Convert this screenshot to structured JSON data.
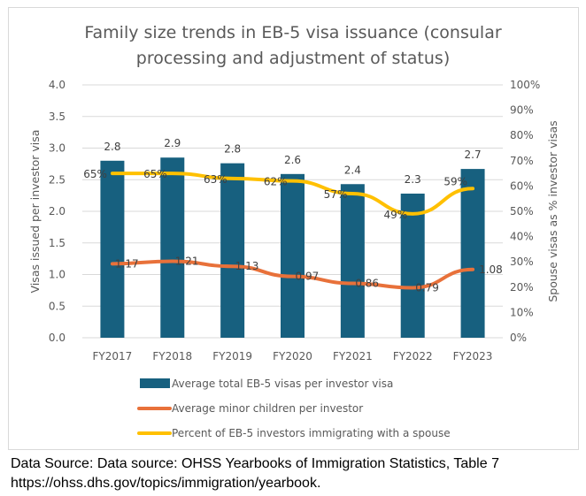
{
  "chart_data": {
    "type": "bar",
    "title_lines": [
      "Family size trends in EB-5 visa issuance (consular",
      "processing and adjustment of status)"
    ],
    "categories": [
      "FY2017",
      "FY2018",
      "FY2019",
      "FY2020",
      "FY2021",
      "FY2022",
      "FY2023"
    ],
    "ylabel": "Visas issued per investor visa",
    "y2label": "Spouse visas as % investor visas",
    "ylim": [
      0,
      4
    ],
    "y2lim": [
      0,
      100
    ],
    "yticks": [
      "0.0",
      "0.5",
      "1.0",
      "1.5",
      "2.0",
      "2.5",
      "3.0",
      "3.5",
      "4.0"
    ],
    "y2ticks": [
      "0%",
      "10%",
      "20%",
      "30%",
      "40%",
      "50%",
      "60%",
      "70%",
      "80%",
      "90%",
      "100%"
    ],
    "grid": true,
    "legend_position": "bottom",
    "series": [
      {
        "name": "Average total EB-5 visas per investor visa",
        "type": "bar",
        "axis": "left",
        "color": "#17607f",
        "values": [
          2.8,
          2.85,
          2.76,
          2.59,
          2.43,
          2.28,
          2.67
        ],
        "labels": [
          "2.8",
          "2.9",
          "2.8",
          "2.6",
          "2.4",
          "2.3",
          "2.7"
        ]
      },
      {
        "name": "Average minor children per investor",
        "type": "line",
        "axis": "left",
        "color": "#e8713a",
        "values": [
          1.17,
          1.21,
          1.13,
          0.97,
          0.86,
          0.79,
          1.08
        ],
        "labels": [
          "1.17",
          "1.21",
          "1.13",
          "0.97",
          "0.86",
          "0.79",
          "1.08"
        ]
      },
      {
        "name": "Percent of EB-5 investors immigrating with a spouse",
        "type": "line",
        "axis": "right",
        "color": "#ffc000",
        "values": [
          65,
          65,
          63,
          62,
          57,
          49,
          59
        ],
        "labels": [
          "65%",
          "65%",
          "63%",
          "62%",
          "57%",
          "49%",
          "59%"
        ]
      }
    ]
  },
  "source": {
    "line1": "Data Source: Data source: OHSS Yearbooks of Immigration Statistics, Table 7",
    "line2": "https://ohss.dhs.gov/topics/immigration/yearbook."
  }
}
